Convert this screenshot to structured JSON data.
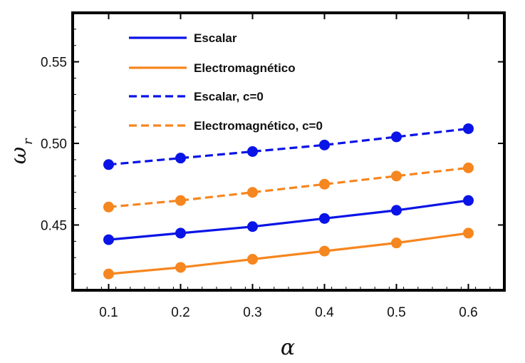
{
  "chart_data": {
    "type": "line",
    "title": "",
    "xlabel": "α",
    "ylabel": "ω",
    "ylabel_subscript": "r",
    "xlim": [
      0.05,
      0.65
    ],
    "ylim": [
      0.41,
      0.58
    ],
    "x": [
      0.1,
      0.2,
      0.3,
      0.4,
      0.5,
      0.6
    ],
    "x_ticks": [
      {
        "value": 0.1,
        "label": "0.1"
      },
      {
        "value": 0.2,
        "label": "0.2"
      },
      {
        "value": 0.3,
        "label": "0.3"
      },
      {
        "value": 0.4,
        "label": "0.4"
      },
      {
        "value": 0.5,
        "label": "0.5"
      },
      {
        "value": 0.6,
        "label": "0.6"
      }
    ],
    "y_ticks": [
      {
        "value": 0.45,
        "label": "0.45"
      },
      {
        "value": 0.5,
        "label": "0.50"
      },
      {
        "value": 0.55,
        "label": "0.55"
      }
    ],
    "legend_position": "top-left",
    "grid": false,
    "markers": true,
    "series": [
      {
        "id": "escalar",
        "name": "Escalar",
        "color": "#0a14e6",
        "dash": "solid",
        "values": [
          0.441,
          0.445,
          0.449,
          0.454,
          0.459,
          0.465
        ]
      },
      {
        "id": "electromagnetico",
        "name": "Electromagnético",
        "color": "#f6861f",
        "dash": "solid",
        "values": [
          0.42,
          0.424,
          0.429,
          0.434,
          0.439,
          0.445
        ]
      },
      {
        "id": "escalar-c0",
        "name": "Escalar, c=0",
        "color": "#0a14e6",
        "dash": "dashed",
        "values": [
          0.487,
          0.491,
          0.495,
          0.499,
          0.504,
          0.509
        ]
      },
      {
        "id": "electromagnetico-c0",
        "name": "Electromagnético, c=0",
        "color": "#f6861f",
        "dash": "dashed",
        "values": [
          0.461,
          0.465,
          0.47,
          0.475,
          0.48,
          0.485
        ]
      }
    ]
  }
}
